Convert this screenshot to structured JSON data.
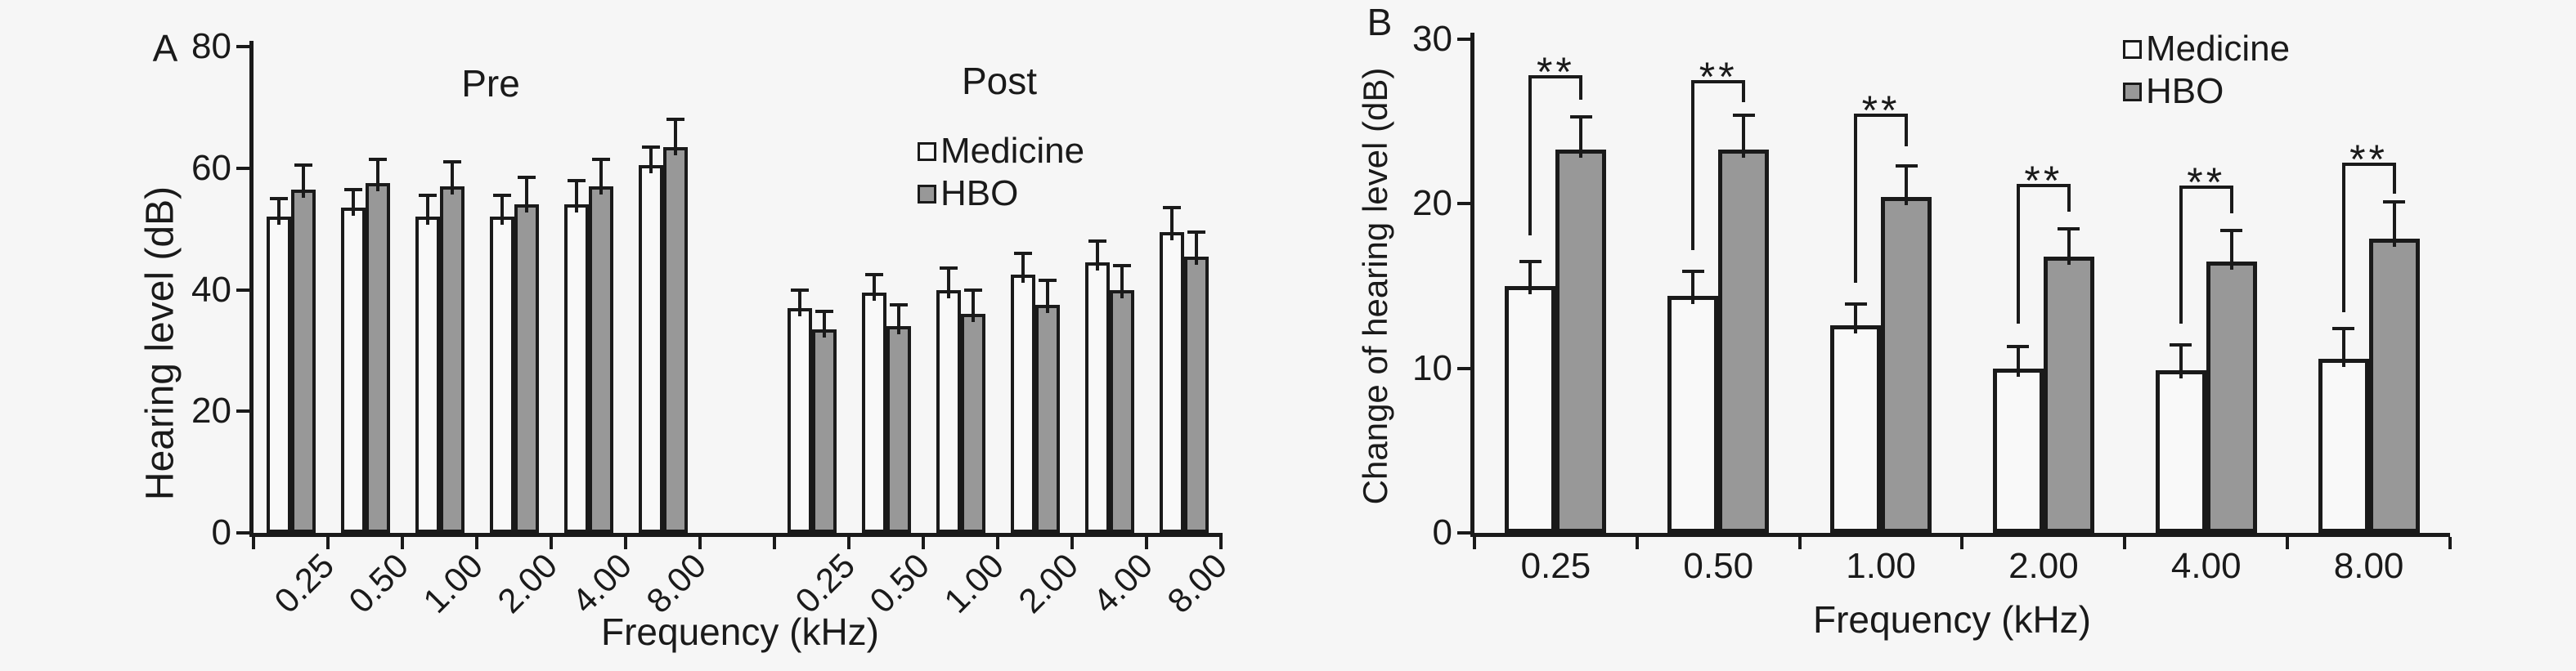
{
  "page": {
    "background": "#f6f6f6",
    "text_color": "#1a1a1a"
  },
  "colors": {
    "medicine_fill": "#f9f9f9",
    "hbo_fill": "#989898",
    "outline": "#1a1a1a",
    "axis": "#1a1a1a"
  },
  "chart_data": [
    {
      "type": "bar",
      "panel_label": "A",
      "ylabel": "Hearing level (dB)",
      "xlabel": "Frequency (kHz)",
      "ylim": [
        0,
        80
      ],
      "yticks": [
        0,
        20,
        40,
        60,
        80
      ],
      "grid": false,
      "legend_position": "inside-top-right-of-plot",
      "legend": [
        {
          "label": "Medicine",
          "swatch": "white-square"
        },
        {
          "label": "HBO",
          "swatch": "gray-square"
        }
      ],
      "groups": [
        {
          "name": "Pre",
          "categories": [
            "0.25",
            "0.50",
            "1.00",
            "2.00",
            "4.00",
            "8.00"
          ],
          "series": [
            {
              "name": "Medicine",
              "values": [
                52,
                53.5,
                52,
                52,
                54,
                60.5
              ],
              "errors": [
                3,
                3,
                3.5,
                3.5,
                4,
                3
              ]
            },
            {
              "name": "HBO",
              "values": [
                56.5,
                57.5,
                57,
                54,
                57,
                63.5
              ],
              "errors": [
                4,
                4,
                4,
                4.5,
                4.5,
                4.5
              ]
            }
          ]
        },
        {
          "name": "Post",
          "categories": [
            "0.25",
            "0.50",
            "1.00",
            "2.00",
            "4.00",
            "8.00"
          ],
          "series": [
            {
              "name": "Medicine",
              "values": [
                37,
                39.5,
                40,
                42.5,
                44.5,
                49.5
              ],
              "errors": [
                3,
                3,
                3.5,
                3.5,
                3.5,
                4
              ]
            },
            {
              "name": "HBO",
              "values": [
                33.5,
                34,
                36,
                37.5,
                40,
                45.5
              ],
              "errors": [
                3,
                3.5,
                4,
                4,
                4,
                4
              ]
            }
          ]
        }
      ]
    },
    {
      "type": "bar",
      "panel_label": "B",
      "ylabel": "Change of hearing level (dB)",
      "xlabel": "Frequency (kHz)",
      "ylim": [
        0,
        30
      ],
      "yticks": [
        0,
        10,
        20,
        30
      ],
      "grid": false,
      "legend_position": "top-right",
      "legend": [
        {
          "label": "Medicine",
          "swatch": "white-square"
        },
        {
          "label": "HBO",
          "swatch": "gray-square"
        }
      ],
      "categories": [
        "0.25",
        "0.50",
        "1.00",
        "2.00",
        "4.00",
        "8.00"
      ],
      "series": [
        {
          "name": "Medicine",
          "values": [
            15,
            14.4,
            12.6,
            10,
            9.9,
            10.6
          ],
          "errors": [
            1.5,
            1.5,
            1.3,
            1.3,
            1.5,
            1.8
          ]
        },
        {
          "name": "HBO",
          "values": [
            23.3,
            23.3,
            20.4,
            16.8,
            16.5,
            17.9
          ],
          "errors": [
            2,
            2.1,
            1.9,
            1.7,
            1.9,
            2.2
          ]
        }
      ],
      "significance": [
        {
          "category": "0.25",
          "label": "**",
          "bar_level_db": 27.7,
          "left_leg_db": 18.1,
          "right_leg_db": 26.3
        },
        {
          "category": "0.50",
          "label": "**",
          "bar_level_db": 27.4,
          "left_leg_db": 17.2,
          "right_leg_db": 26.2
        },
        {
          "category": "1.00",
          "label": "**",
          "bar_level_db": 25.4,
          "left_leg_db": 15.2,
          "right_leg_db": 23.5
        },
        {
          "category": "2.00",
          "label": "**",
          "bar_level_db": 21.1,
          "left_leg_db": 12.7,
          "right_leg_db": 19.5
        },
        {
          "category": "4.00",
          "label": "**",
          "bar_level_db": 21.0,
          "left_leg_db": 12.7,
          "right_leg_db": 19.4
        },
        {
          "category": "8.00",
          "label": "**",
          "bar_level_db": 22.4,
          "left_leg_db": 13.4,
          "right_leg_db": 20.6
        }
      ]
    }
  ]
}
